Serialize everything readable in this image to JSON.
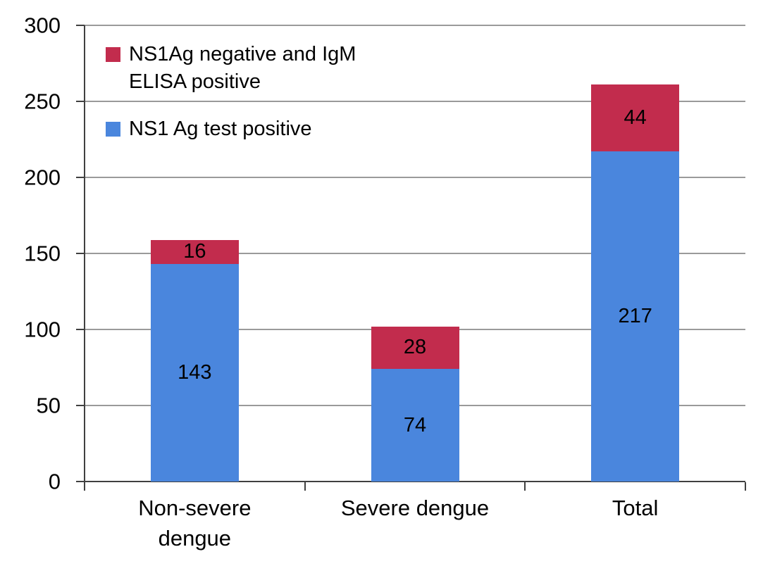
{
  "chart_data": {
    "type": "bar",
    "stacked": true,
    "title": "",
    "xlabel": "",
    "ylabel": "",
    "categories": [
      "Non-severe dengue",
      "Severe dengue",
      "Total"
    ],
    "series": [
      {
        "name": "NS1 Ag test positive",
        "color": "#4a86dd",
        "values": [
          143,
          74,
          217
        ]
      },
      {
        "name": "NS1Ag negative and IgM ELISA positive",
        "color": "#c22c4d",
        "values": [
          16,
          28,
          44
        ]
      }
    ],
    "stack_totals": [
      159,
      102,
      261
    ],
    "ylim": [
      0,
      300
    ],
    "yticks": [
      0,
      50,
      100,
      150,
      200,
      250,
      300
    ],
    "grid": true,
    "gridline_color": "#9a9a9a",
    "axis_color": "#404040",
    "legend_position": "top-left",
    "legend_order_indices": [
      1,
      0
    ]
  }
}
